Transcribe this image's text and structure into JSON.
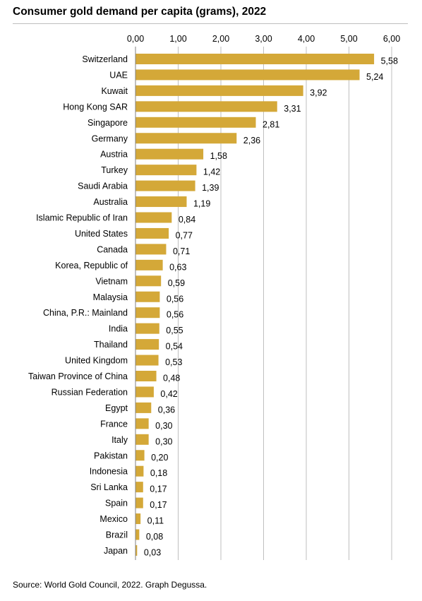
{
  "title": "Consumer gold demand per capita (grams), 2022",
  "source": "Source: World Gold Council, 2022. Graph Degussa.",
  "colors": {
    "bar": "#D4A838",
    "grid": "#BFBFBF",
    "axis": "#808080"
  },
  "chart_data": {
    "type": "bar",
    "orientation": "horizontal",
    "title": "Consumer gold demand per capita (grams), 2022",
    "xlabel": "",
    "ylabel": "",
    "xlim": [
      0,
      6
    ],
    "xticks": [
      0,
      1,
      2,
      3,
      4,
      5,
      6
    ],
    "xtick_labels": [
      "0,00",
      "1,00",
      "2,00",
      "3,00",
      "4,00",
      "5,00",
      "6,00"
    ],
    "x_axis_position": "top",
    "grid": true,
    "legend": "none",
    "categories": [
      "Switzerland",
      "UAE",
      "Kuwait",
      "Hong Kong SAR",
      "Singapore",
      "Germany",
      "Austria",
      "Turkey",
      "Saudi Arabia",
      "Australia",
      "Islamic Republic of Iran",
      "United States",
      "Canada",
      "Korea, Republic of",
      "Vietnam",
      "Malaysia",
      "China, P.R.: Mainland",
      "India",
      "Thailand",
      "United Kingdom",
      "Taiwan Province of China",
      "Russian Federation",
      "Egypt",
      "France",
      "Italy",
      "Pakistan",
      "Indonesia",
      "Sri Lanka",
      "Spain",
      "Mexico",
      "Brazil",
      "Japan"
    ],
    "values": [
      5.58,
      5.24,
      3.92,
      3.31,
      2.81,
      2.36,
      1.58,
      1.42,
      1.39,
      1.19,
      0.84,
      0.77,
      0.71,
      0.63,
      0.59,
      0.56,
      0.56,
      0.55,
      0.54,
      0.53,
      0.48,
      0.42,
      0.36,
      0.3,
      0.3,
      0.2,
      0.18,
      0.17,
      0.17,
      0.11,
      0.08,
      0.03
    ],
    "value_labels": [
      "5,58",
      "5,24",
      "3,92",
      "3,31",
      "2,81",
      "2,36",
      "1,58",
      "1,42",
      "1,39",
      "1,19",
      "0,84",
      "0,77",
      "0,71",
      "0,63",
      "0,59",
      "0,56",
      "0,56",
      "0,55",
      "0,54",
      "0,53",
      "0,48",
      "0,42",
      "0,36",
      "0,30",
      "0,30",
      "0,20",
      "0,18",
      "0,17",
      "0,17",
      "0,11",
      "0,08",
      "0,03"
    ]
  }
}
